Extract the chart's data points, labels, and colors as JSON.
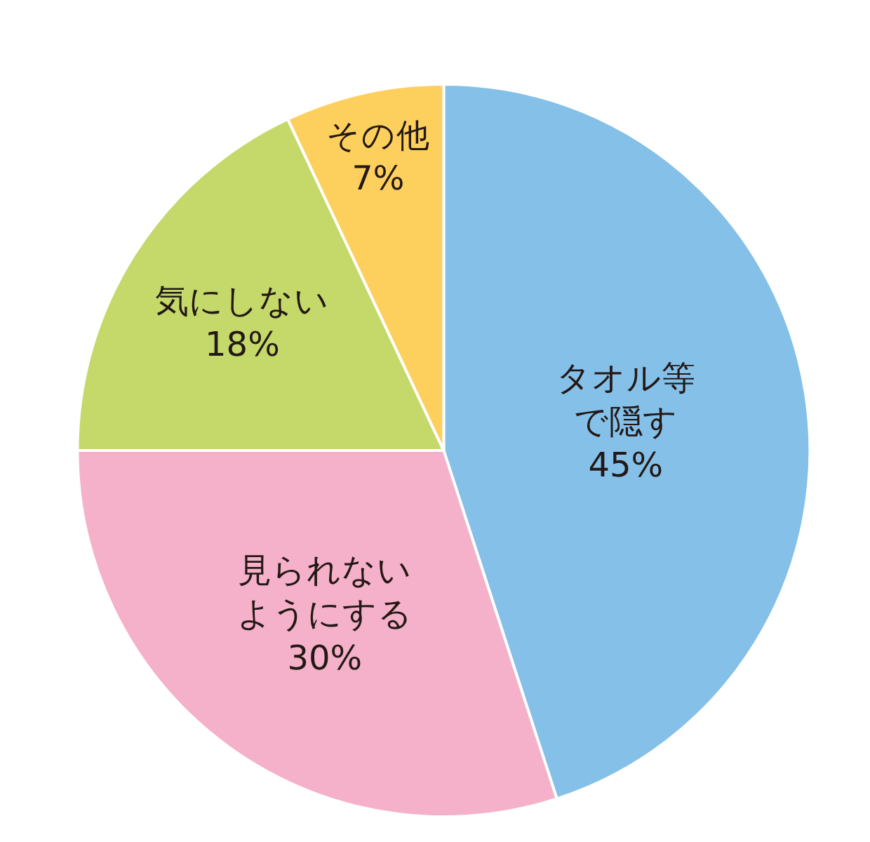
{
  "chart_data": {
    "type": "pie",
    "categories": [
      "タオル等で隠す",
      "見られないようにする",
      "気にしない",
      "その他"
    ],
    "values": [
      45,
      30,
      18,
      7
    ],
    "value_labels": [
      "45%",
      "30%",
      "18%",
      "7%"
    ],
    "colors": [
      "#85c0e8",
      "#f4b1c9",
      "#c4d96a",
      "#fdd05e"
    ],
    "legend": false
  }
}
